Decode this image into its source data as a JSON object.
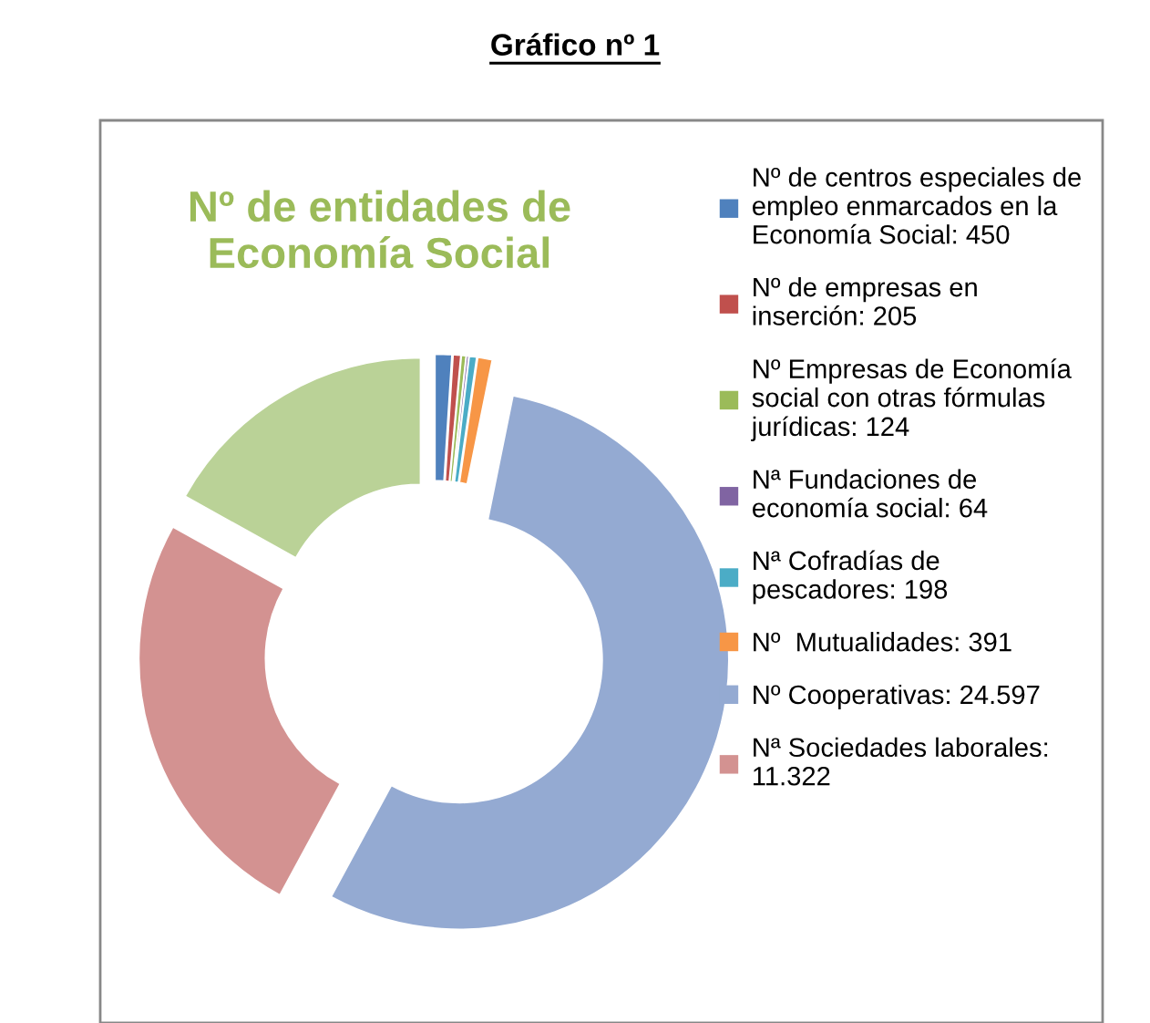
{
  "chart_data": {
    "type": "donut",
    "title": "Gráfico nº 1",
    "subtitle": "Nº de entidades de\nEconomía Social",
    "categories": [
      "Nº de centros especiales de\nempleo enmarcados en la\nEconomía Social: 450",
      "Nº de empresas en\ninserción: 205",
      "Nº Empresas de Economía\nsocial con otras fórmulas\njurídicas: 124",
      "Nª Fundaciones de\neconomía social: 64",
      "Nª Cofradías de\npescadores: 198",
      "Nº  Mutualidades: 391",
      "Nº Cooperativas: 24.597",
      "Nª Sociedades laborales:\n11.322",
      null
    ],
    "values": [
      450,
      205,
      124,
      64,
      198,
      391,
      24597,
      11322,
      7600
    ],
    "colors": [
      "#4f81bd",
      "#c0504d",
      "#9bbb59",
      "#8064a2",
      "#4bacc6",
      "#f79646",
      "#94aad2",
      "#d39291",
      "#bad297"
    ],
    "legend": "right"
  }
}
